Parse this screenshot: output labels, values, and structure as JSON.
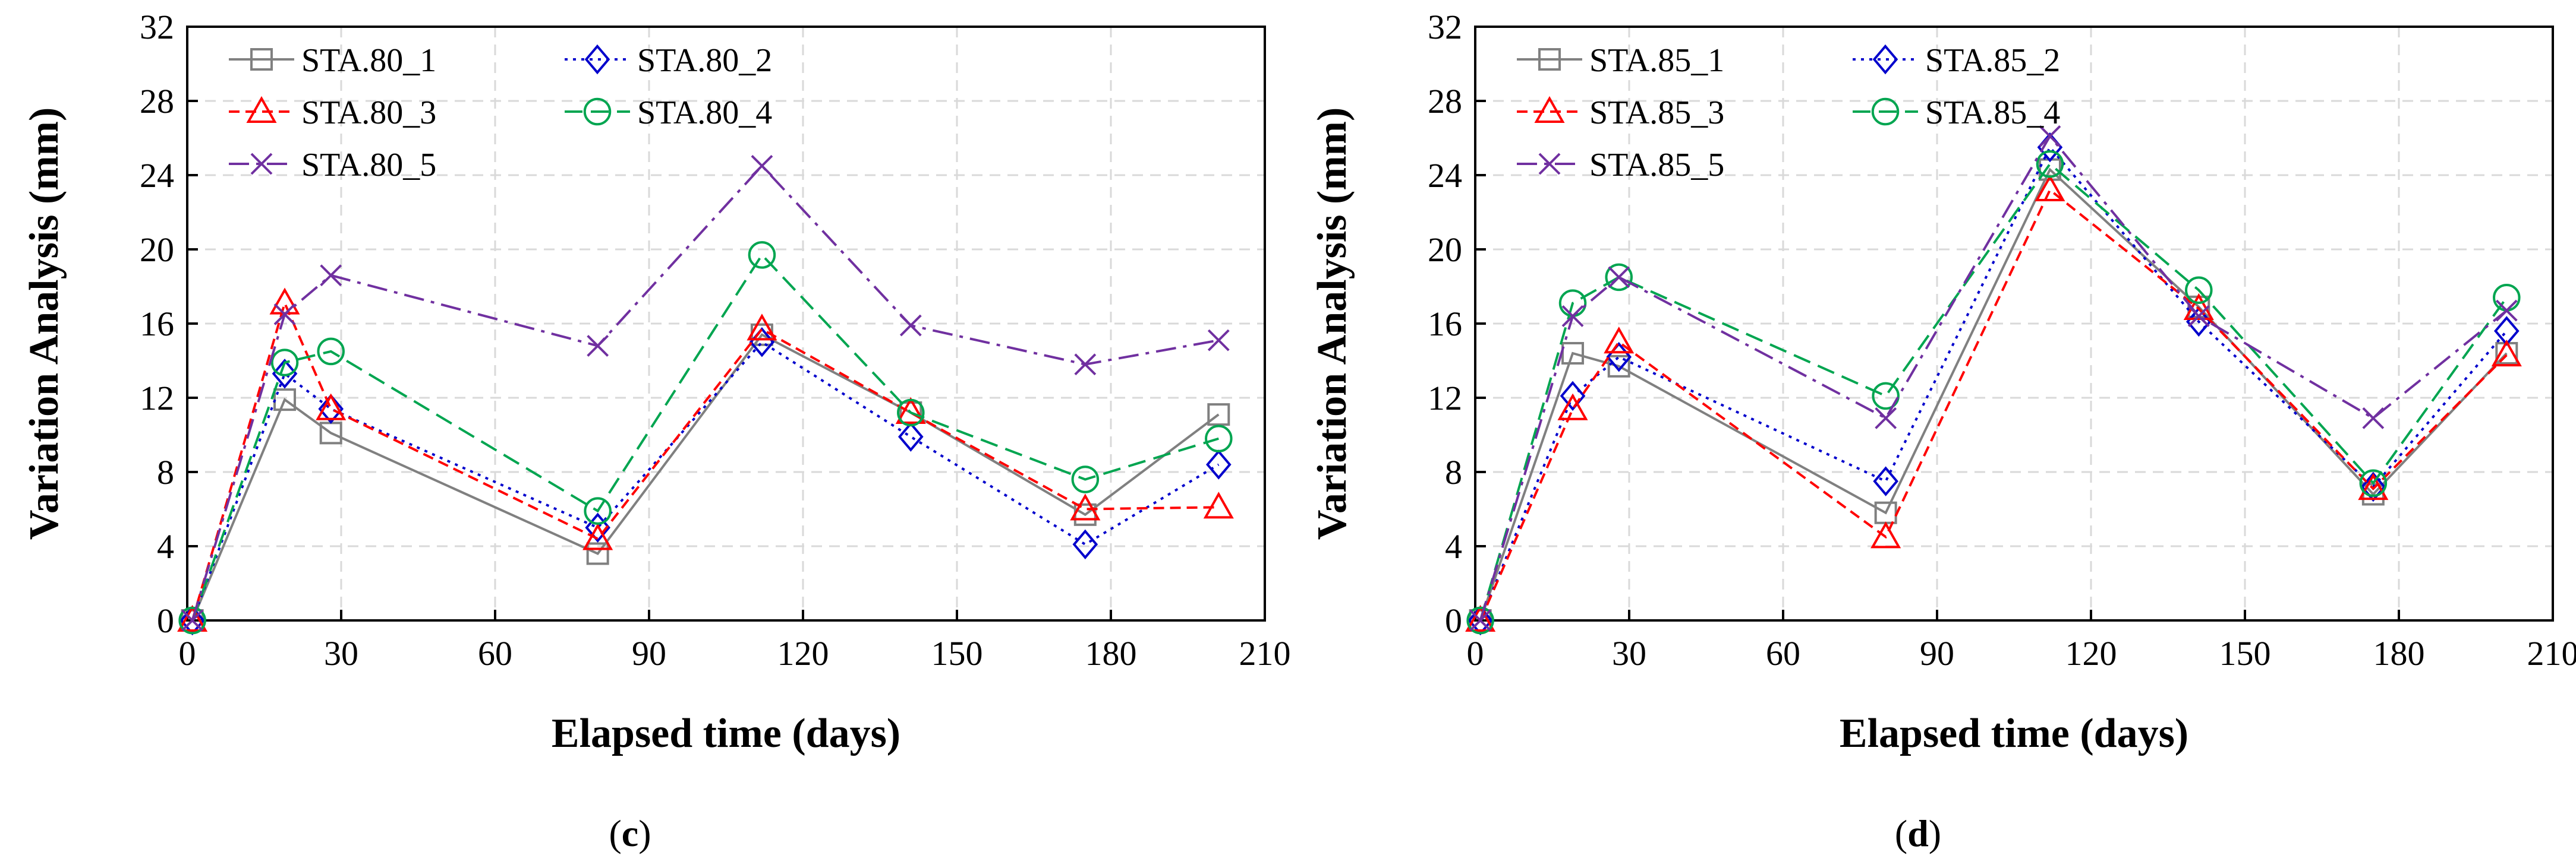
{
  "chart_data": [
    {
      "type": "line",
      "panel": "(c)",
      "panel_letter": "c",
      "xlabel": "Elapsed time (days)",
      "ylabel": "Variation Analysis (mm)",
      "xlim": [
        0,
        210
      ],
      "ylim": [
        0,
        32
      ],
      "xticks": [
        0,
        30,
        60,
        90,
        120,
        150,
        180,
        210
      ],
      "yticks": [
        0,
        4,
        8,
        12,
        16,
        20,
        24,
        28,
        32
      ],
      "grid": true,
      "legend_position": "top-left",
      "x": [
        1,
        19,
        28,
        80,
        112,
        141,
        175,
        201
      ],
      "series": [
        {
          "name": "STA.80_1",
          "marker": "square",
          "color": "#808080",
          "dash": "solid",
          "values": [
            0,
            11.9,
            10.1,
            3.6,
            15.4,
            11.2,
            5.7,
            11.1
          ]
        },
        {
          "name": "STA.80_2",
          "marker": "diamond",
          "color": "#0000cc",
          "dash": "dotted",
          "values": [
            0,
            13.3,
            11.4,
            5.0,
            15.0,
            9.9,
            4.1,
            8.4
          ]
        },
        {
          "name": "STA.80_3",
          "marker": "triangle",
          "color": "#ff0000",
          "dash": "dashed",
          "values": [
            0,
            17.1,
            11.4,
            4.4,
            15.7,
            11.2,
            6.0,
            6.1
          ]
        },
        {
          "name": "STA.80_4",
          "marker": "circle",
          "color": "#00a550",
          "dash": "longdash",
          "values": [
            0,
            13.9,
            14.5,
            5.9,
            19.7,
            11.2,
            7.6,
            9.8
          ]
        },
        {
          "name": "STA.80_5",
          "marker": "x",
          "color": "#7030a0",
          "dash": "dashdot",
          "values": [
            0,
            16.5,
            18.6,
            14.8,
            24.5,
            15.9,
            13.8,
            15.1
          ]
        }
      ]
    },
    {
      "type": "line",
      "panel": "(d)",
      "panel_letter": "d",
      "xlabel": "Elapsed time (days)",
      "ylabel": "Variation Analysis (mm)",
      "xlim": [
        0,
        210
      ],
      "ylim": [
        0,
        32
      ],
      "xticks": [
        0,
        30,
        60,
        90,
        120,
        150,
        180,
        210
      ],
      "yticks": [
        0,
        4,
        8,
        12,
        16,
        20,
        24,
        28,
        32
      ],
      "grid": true,
      "legend_position": "top-left",
      "x": [
        1,
        19,
        28,
        80,
        112,
        141,
        175,
        201
      ],
      "series": [
        {
          "name": "STA.85_1",
          "marker": "square",
          "color": "#808080",
          "dash": "solid",
          "values": [
            0,
            14.4,
            13.7,
            5.8,
            24.3,
            16.9,
            6.8,
            14.4
          ]
        },
        {
          "name": "STA.85_2",
          "marker": "diamond",
          "color": "#0000cc",
          "dash": "dotted",
          "values": [
            0,
            12.1,
            14.2,
            7.5,
            25.5,
            16.1,
            7.2,
            15.6
          ]
        },
        {
          "name": "STA.85_3",
          "marker": "triangle",
          "color": "#ff0000",
          "dash": "dashed",
          "values": [
            0,
            11.4,
            15.0,
            4.5,
            23.2,
            16.8,
            7.1,
            14.3
          ]
        },
        {
          "name": "STA.85_4",
          "marker": "circle",
          "color": "#00a550",
          "dash": "longdash",
          "values": [
            0,
            17.1,
            18.5,
            12.1,
            24.6,
            17.8,
            7.4,
            17.4
          ]
        },
        {
          "name": "STA.85_5",
          "marker": "x",
          "color": "#7030a0",
          "dash": "dashdot",
          "values": [
            0,
            16.4,
            18.5,
            10.9,
            26.1,
            16.4,
            10.9,
            16.7
          ]
        }
      ]
    }
  ]
}
